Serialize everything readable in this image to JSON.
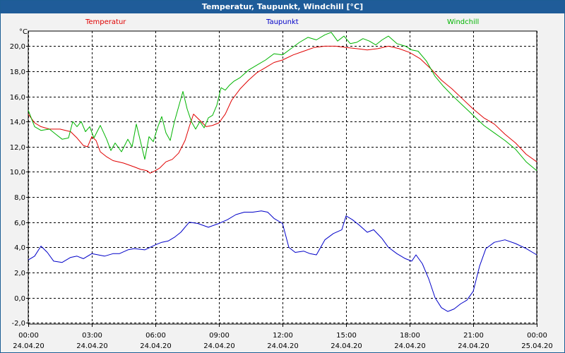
{
  "window": {
    "title": "Temperatur, Taupunkt, Windchill [°C]"
  },
  "chart_data": {
    "type": "line",
    "title": "Temperatur, Taupunkt, Windchill [°C]",
    "ylabel": "°C",
    "ylim": [
      -2.1,
      21.2
    ],
    "xlim": [
      0,
      24
    ],
    "grid": true,
    "y_ticks": [
      "-2,0",
      "0,0",
      "2,0",
      "4,0",
      "6,0",
      "8,0",
      "10,0",
      "12,0",
      "14,0",
      "16,0",
      "18,0",
      "20,0"
    ],
    "y_tick_values": [
      -2,
      0,
      2,
      4,
      6,
      8,
      10,
      12,
      14,
      16,
      18,
      20
    ],
    "x_ticks": [
      {
        "time": "00:00",
        "date": "24.04.20"
      },
      {
        "time": "03:00",
        "date": "24.04.20"
      },
      {
        "time": "06:00",
        "date": "24.04.20"
      },
      {
        "time": "09:00",
        "date": "24.04.20"
      },
      {
        "time": "12:00",
        "date": "24.04.20"
      },
      {
        "time": "15:00",
        "date": "24.04.20"
      },
      {
        "time": "18:00",
        "date": "24.04.20"
      },
      {
        "time": "21:00",
        "date": "24.04.20"
      },
      {
        "time": "00:00",
        "date": "25.04.20"
      }
    ],
    "x_tick_values": [
      0,
      3,
      6,
      9,
      12,
      15,
      18,
      21,
      24
    ],
    "series": [
      {
        "name": "Temperatur",
        "color": "#e00000",
        "x": [
          0,
          0.3,
          0.6,
          1,
          1.5,
          2,
          2.3,
          2.6,
          2.8,
          3,
          3.2,
          3.4,
          3.7,
          4,
          4.5,
          5,
          5.3,
          5.6,
          5.75,
          6,
          6.2,
          6.5,
          6.8,
          7.1,
          7.4,
          7.6,
          7.8,
          8.1,
          8.4,
          8.7,
          9,
          9.3,
          9.6,
          10,
          10.4,
          10.8,
          11.2,
          11.6,
          12,
          12.5,
          13,
          13.5,
          14,
          14.5,
          15,
          15.5,
          16,
          16.5,
          17,
          17.5,
          18,
          18.5,
          19,
          19.5,
          20,
          20.5,
          21,
          21.5,
          22,
          22.5,
          23,
          23.5,
          24
        ],
        "values": [
          14.6,
          13.9,
          13.6,
          13.4,
          13.4,
          13.2,
          12.7,
          12.1,
          12.0,
          12.8,
          12.5,
          11.6,
          11.2,
          10.9,
          10.7,
          10.4,
          10.2,
          10.1,
          9.9,
          10.1,
          10.3,
          10.8,
          11.0,
          11.5,
          12.5,
          13.6,
          14.6,
          14.1,
          13.6,
          13.7,
          13.9,
          14.6,
          15.7,
          16.6,
          17.3,
          17.9,
          18.3,
          18.7,
          18.9,
          19.3,
          19.6,
          19.9,
          20.0,
          20.0,
          19.9,
          19.8,
          19.7,
          19.8,
          20.0,
          19.8,
          19.5,
          19.0,
          18.2,
          17.3,
          16.6,
          15.8,
          15.0,
          14.3,
          13.8,
          13.0,
          12.3,
          11.4,
          10.8
        ]
      },
      {
        "name": "Taupunkt",
        "color": "#0000c8",
        "x": [
          0,
          0.3,
          0.6,
          0.9,
          1.2,
          1.6,
          2,
          2.3,
          2.6,
          3,
          3.3,
          3.6,
          4,
          4.3,
          4.7,
          5,
          5.5,
          6,
          6.3,
          6.6,
          6.9,
          7.2,
          7.6,
          8,
          8.5,
          9,
          9.4,
          9.8,
          10.2,
          10.6,
          11,
          11.3,
          11.6,
          12,
          12.3,
          12.6,
          13,
          13.3,
          13.6,
          14,
          14.4,
          14.8,
          15,
          15.3,
          15.6,
          16,
          16.3,
          16.7,
          17,
          17.4,
          17.8,
          18.1,
          18.3,
          18.6,
          18.9,
          19.2,
          19.5,
          19.8,
          20.1,
          20.4,
          20.7,
          21,
          21.3,
          21.6,
          22,
          22.5,
          23,
          23.5,
          24
        ],
        "values": [
          3.0,
          3.3,
          4.1,
          3.6,
          2.9,
          2.8,
          3.2,
          3.3,
          3.1,
          3.5,
          3.4,
          3.3,
          3.5,
          3.5,
          3.8,
          3.9,
          3.8,
          4.2,
          4.4,
          4.5,
          4.8,
          5.2,
          6.0,
          5.9,
          5.6,
          5.9,
          6.2,
          6.6,
          6.8,
          6.8,
          6.9,
          6.8,
          6.3,
          5.9,
          4.0,
          3.6,
          3.7,
          3.5,
          3.4,
          4.6,
          5.1,
          5.4,
          6.5,
          6.2,
          5.8,
          5.2,
          5.4,
          4.7,
          4.0,
          3.5,
          3.1,
          2.9,
          3.4,
          2.7,
          1.5,
          0.0,
          -0.8,
          -1.1,
          -0.9,
          -0.5,
          -0.2,
          0.5,
          2.5,
          3.9,
          4.4,
          4.6,
          4.3,
          3.9,
          3.4
        ]
      },
      {
        "name": "Windchill",
        "color": "#00b400",
        "x": [
          0,
          0.3,
          0.6,
          1,
          1.3,
          1.6,
          1.9,
          2.1,
          2.3,
          2.5,
          2.7,
          2.9,
          3.1,
          3.4,
          3.7,
          3.9,
          4.1,
          4.4,
          4.7,
          4.9,
          5.1,
          5.3,
          5.5,
          5.7,
          5.9,
          6.1,
          6.3,
          6.5,
          6.7,
          6.9,
          7.1,
          7.3,
          7.5,
          7.7,
          7.9,
          8.1,
          8.3,
          8.5,
          8.7,
          8.9,
          9.1,
          9.3,
          9.5,
          9.7,
          10,
          10.4,
          10.8,
          11.2,
          11.6,
          12,
          12.4,
          12.8,
          13.2,
          13.6,
          14,
          14.3,
          14.6,
          14.9,
          15.2,
          15.5,
          15.8,
          16.1,
          16.4,
          16.7,
          17,
          17.4,
          17.8,
          18.1,
          18.4,
          18.8,
          19.2,
          19.6,
          20,
          20.5,
          21,
          21.5,
          22,
          22.5,
          23,
          23.5,
          24
        ],
        "values": [
          14.9,
          13.6,
          13.3,
          13.4,
          13.0,
          12.6,
          12.7,
          14.0,
          13.6,
          14.0,
          13.2,
          13.6,
          12.7,
          13.7,
          12.6,
          11.7,
          12.3,
          11.6,
          12.6,
          12.0,
          13.8,
          12.4,
          11.0,
          12.8,
          12.4,
          13.5,
          14.4,
          13.1,
          12.5,
          14.0,
          15.2,
          16.4,
          15.0,
          14.0,
          13.4,
          14.0,
          13.5,
          14.3,
          14.5,
          15.3,
          16.7,
          16.5,
          16.9,
          17.2,
          17.5,
          18.1,
          18.5,
          18.9,
          19.4,
          19.3,
          19.8,
          20.3,
          20.7,
          20.5,
          20.9,
          21.1,
          20.4,
          20.8,
          20.2,
          20.3,
          20.6,
          20.4,
          20.1,
          20.5,
          20.8,
          20.2,
          20.0,
          19.7,
          19.6,
          18.8,
          17.6,
          16.8,
          16.1,
          15.3,
          14.5,
          13.7,
          13.1,
          12.5,
          11.8,
          10.8,
          10.1
        ]
      }
    ]
  }
}
